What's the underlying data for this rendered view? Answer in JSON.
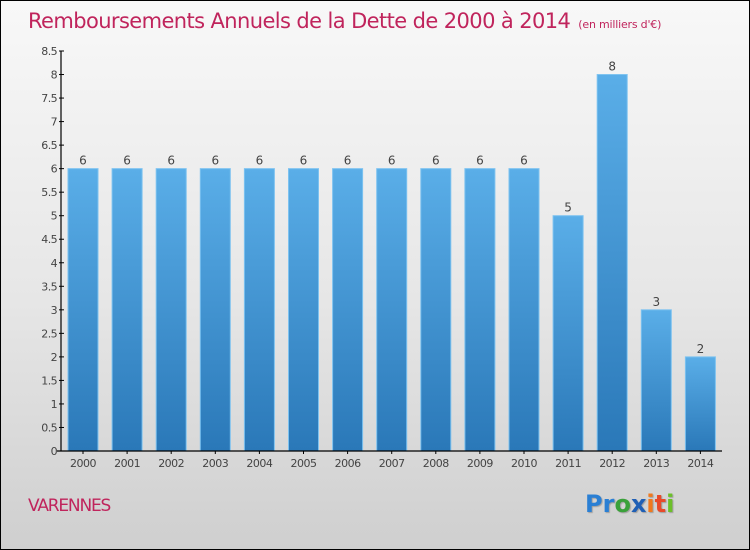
{
  "header": {
    "title": "Remboursements Annuels de la Dette de 2000 à 2014",
    "unit": "(en milliers d'€)"
  },
  "footer": {
    "commune": "VARENNES",
    "logo": {
      "letters": [
        {
          "ch": "P",
          "color": "#2a7fd4"
        },
        {
          "ch": "r",
          "color": "#2a7fd4"
        },
        {
          "ch": "o",
          "color": "#3aa13a"
        },
        {
          "ch": "x",
          "color": "#1f5fb5"
        },
        {
          "ch": "i",
          "color": "#f0791e"
        },
        {
          "ch": "t",
          "color": "#e84a2a"
        },
        {
          "ch": "i",
          "color": "#6cbf2a"
        }
      ]
    }
  },
  "chart_data": {
    "type": "bar",
    "title": "Remboursements Annuels de la Dette de 2000 à 2014",
    "subtitle": "(en milliers d'€)",
    "xlabel": "",
    "ylabel": "",
    "categories": [
      "2000",
      "2001",
      "2002",
      "2003",
      "2004",
      "2005",
      "2006",
      "2007",
      "2008",
      "2009",
      "2010",
      "2011",
      "2012",
      "2013",
      "2014"
    ],
    "values": [
      6,
      6,
      6,
      6,
      6,
      6,
      6,
      6,
      6,
      6,
      6,
      5,
      8,
      3,
      2
    ],
    "data_labels": [
      "6",
      "6",
      "6",
      "6",
      "6",
      "6",
      "6",
      "6",
      "6",
      "6",
      "6",
      "5",
      "8",
      "3",
      "2"
    ],
    "ylim": [
      0,
      8.5
    ],
    "yticks": [
      0,
      0.5,
      1,
      1.5,
      2,
      2.5,
      3,
      3.5,
      4,
      4.5,
      5,
      5.5,
      6,
      6.5,
      7,
      7.5,
      8,
      8.5
    ],
    "ytick_labels": [
      "0",
      "0.5",
      "1",
      "1.5",
      "2",
      "2.5",
      "3",
      "3.5",
      "4",
      "4.5",
      "5",
      "5.5",
      "6",
      "6.5",
      "7",
      "7.5",
      "8",
      "8.5"
    ],
    "grid": false,
    "legend": "none",
    "colors": {
      "bar_top": "#5aaee8",
      "bar_bottom": "#2a78b8",
      "title": "#c0245c"
    }
  }
}
